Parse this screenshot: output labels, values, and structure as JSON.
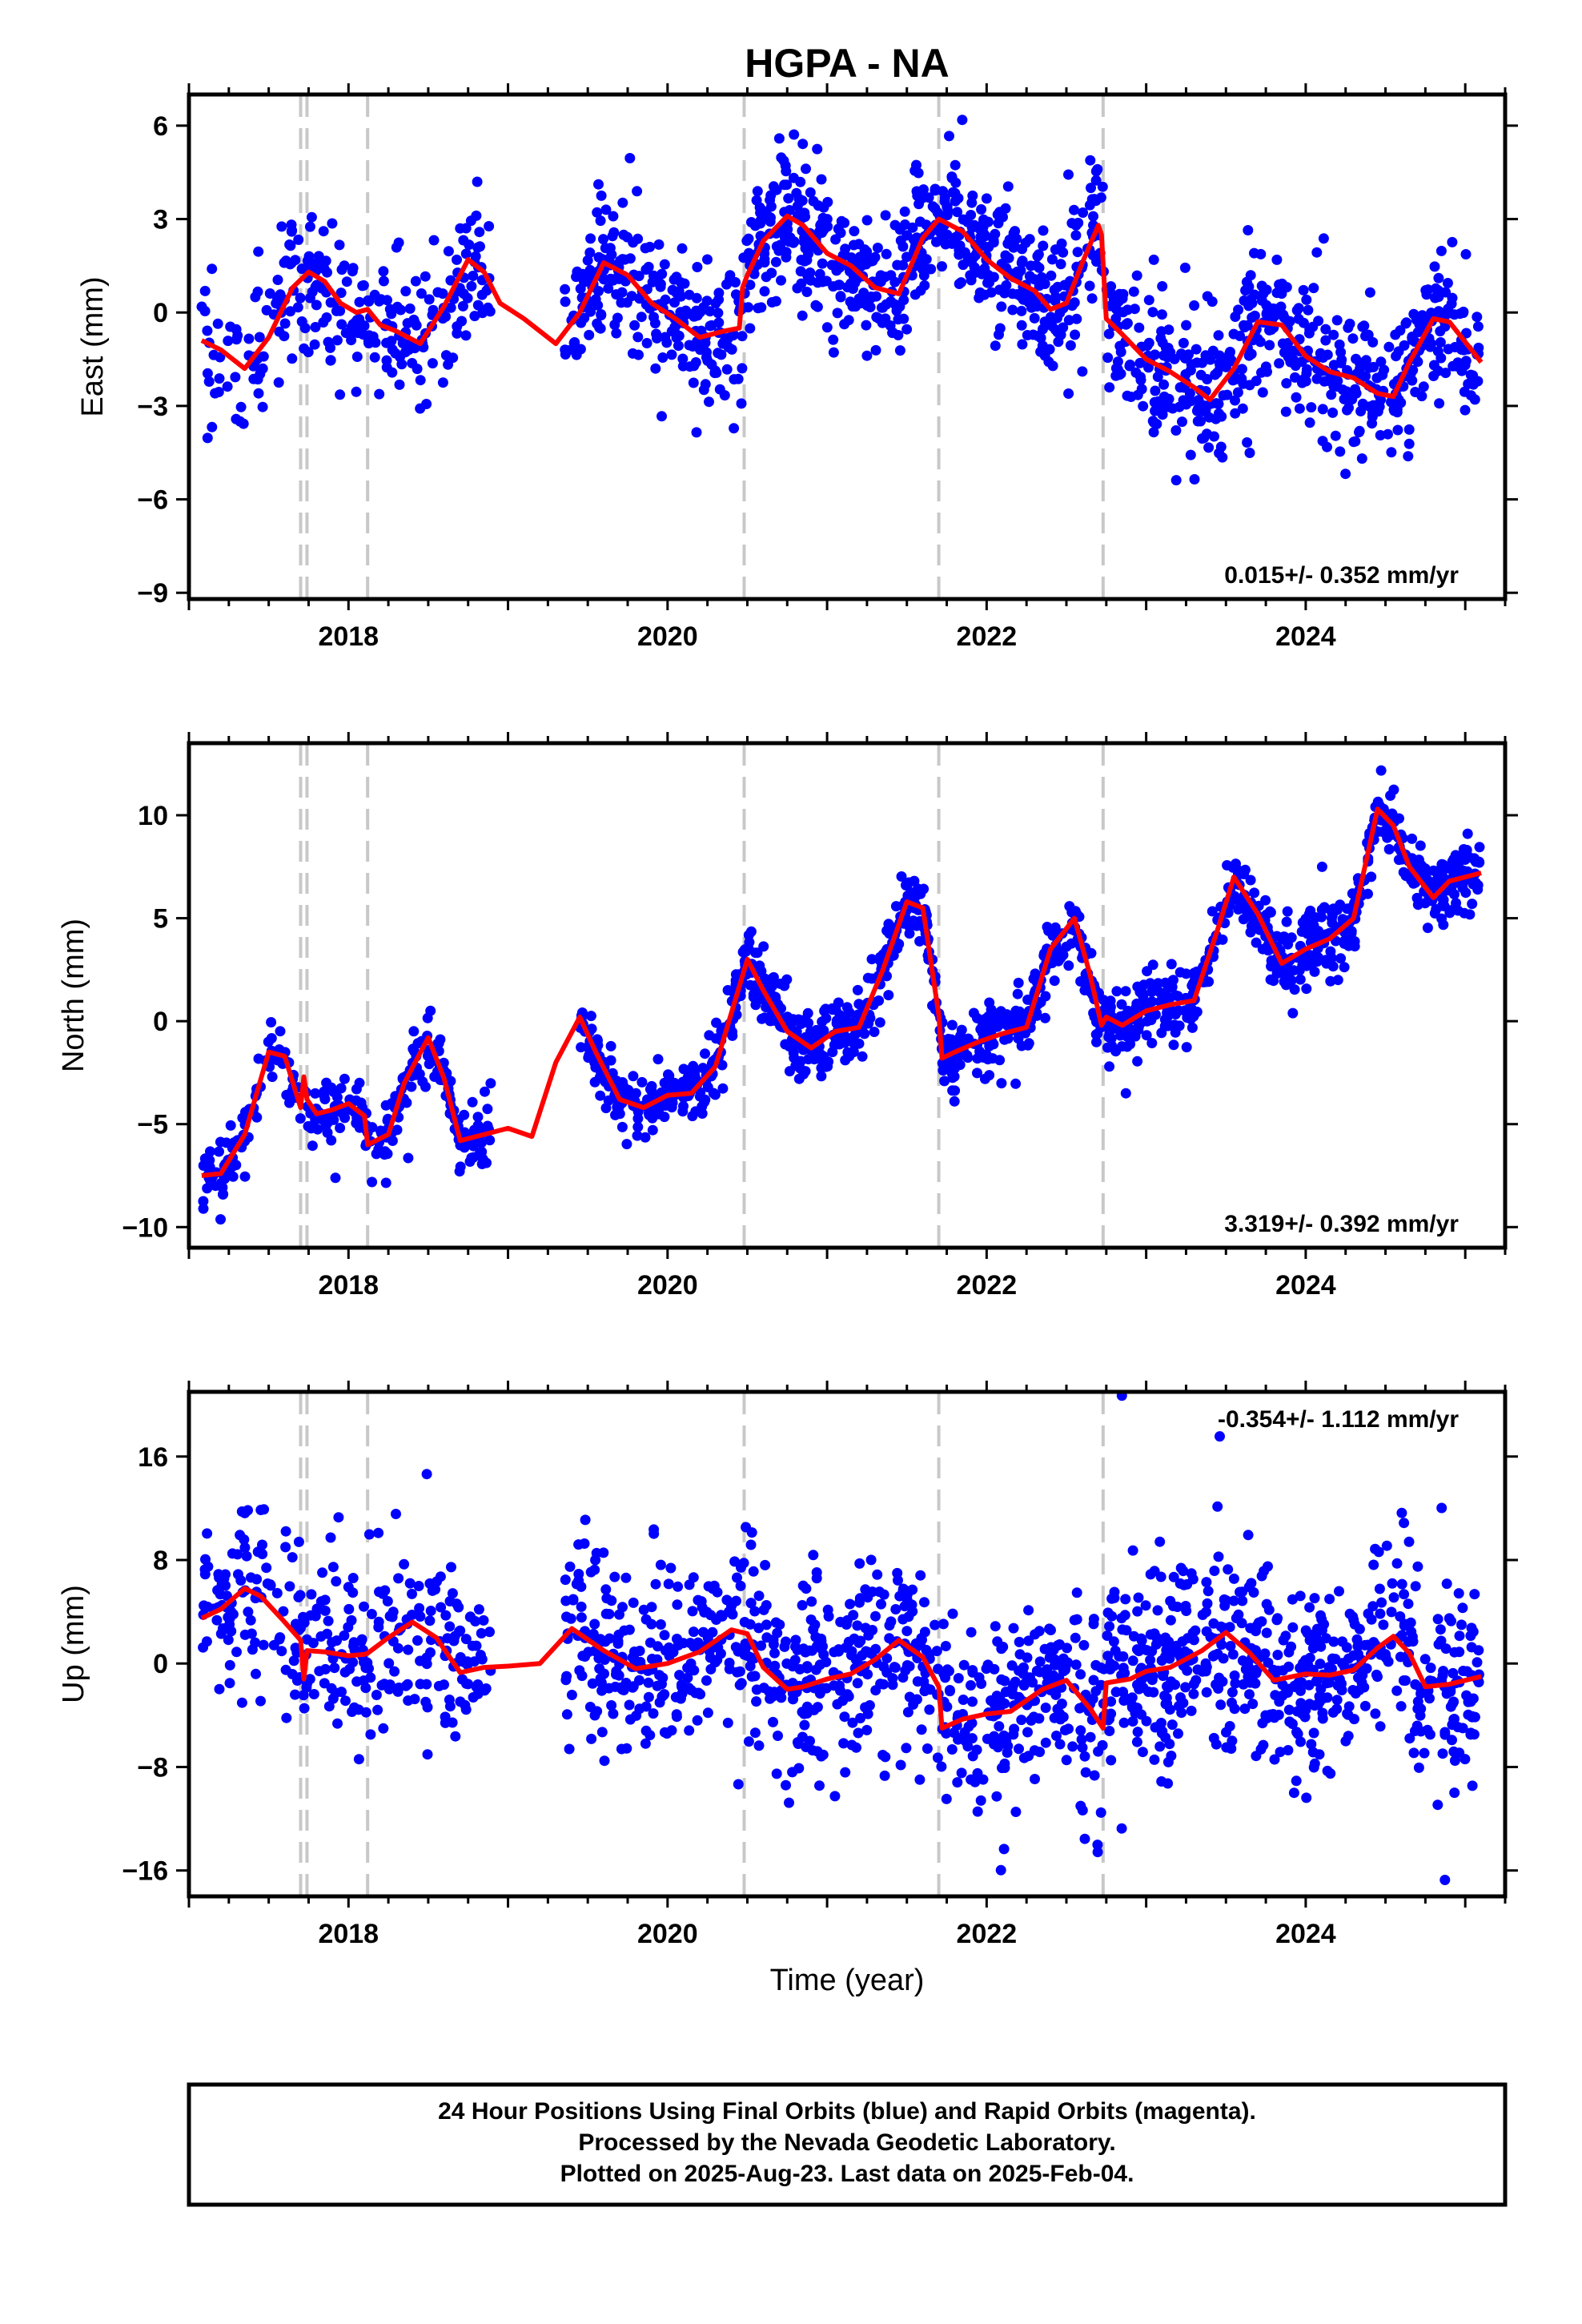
{
  "figure": {
    "title": "HGPA - NA",
    "xlabel": "Time (year)",
    "footer_lines": [
      "24 Hour Positions Using Final Orbits (blue) and Rapid Orbits (magenta).",
      "Processed by the Nevada Geodetic Laboratory.",
      "Plotted on 2025-Aug-23. Last data on 2025-Feb-04."
    ],
    "colors": {
      "points": "#0000ff",
      "model": "#ff0000",
      "breaks": "#c8c8c8",
      "frame": "#000000"
    }
  },
  "chart_data": [
    {
      "type": "scatter",
      "ylabel": "East (mm)",
      "rate": "0.015+/- 0.352 mm/yr",
      "rate_position": "bottom-right",
      "xlim": [
        2017.0,
        2025.25
      ],
      "ylim": [
        -9.2,
        7.0
      ],
      "xticks": [
        2018,
        2020,
        2022,
        2024
      ],
      "yticks": [
        6,
        3,
        0,
        -3,
        -6,
        -9
      ],
      "breaks": [
        2017.7,
        2017.74,
        2018.12,
        2020.48,
        2021.7,
        2022.73
      ],
      "model": {
        "x": [
          2017.08,
          2017.2,
          2017.35,
          2017.5,
          2017.65,
          2017.75,
          2017.85,
          2017.95,
          2018.05,
          2018.12,
          2018.2,
          2018.3,
          2018.45,
          2018.6,
          2018.75,
          2018.85,
          2018.95,
          2019.1,
          2019.3,
          2019.45,
          2019.6,
          2019.75,
          2019.9,
          2020.05,
          2020.2,
          2020.35,
          2020.45,
          2020.47,
          2020.5,
          2020.6,
          2020.75,
          2020.85,
          2021.0,
          2021.15,
          2021.3,
          2021.45,
          2021.6,
          2021.7,
          2021.85,
          2022.0,
          2022.15,
          2022.3,
          2022.4,
          2022.5,
          2022.6,
          2022.7,
          2022.72,
          2022.75,
          2022.85,
          2023.0,
          2023.15,
          2023.3,
          2023.4,
          2023.55,
          2023.7,
          2023.85,
          2024.0,
          2024.15,
          2024.3,
          2024.45,
          2024.55,
          2024.65,
          2024.8,
          2024.9,
          2025.1
        ],
        "y": [
          -0.9,
          -1.2,
          -1.8,
          -0.8,
          0.8,
          1.3,
          1.0,
          0.3,
          0.0,
          0.1,
          -0.4,
          -0.6,
          -1.0,
          0.2,
          1.7,
          1.3,
          0.3,
          -0.2,
          -1.0,
          0.0,
          1.6,
          1.2,
          0.3,
          -0.2,
          -0.8,
          -0.6,
          -0.5,
          0.8,
          1.2,
          2.3,
          3.1,
          2.8,
          1.9,
          1.5,
          0.8,
          0.6,
          2.4,
          3.0,
          2.6,
          1.7,
          1.1,
          0.7,
          0.1,
          0.3,
          1.6,
          2.8,
          2.5,
          -0.2,
          -0.7,
          -1.5,
          -1.9,
          -2.4,
          -2.8,
          -1.8,
          -0.3,
          -0.4,
          -1.4,
          -1.9,
          -2.1,
          -2.6,
          -2.7,
          -1.6,
          -0.2,
          -0.3,
          -1.6
        ]
      },
      "seasonal": {
        "amp": 1.2,
        "phase": 2017.7
      },
      "segments": [
        {
          "from": 2017.08,
          "to": 2018.9,
          "noise": 1.1,
          "n": 270
        },
        {
          "from": 2019.35,
          "to": 2020.55,
          "noise": 1.1,
          "n": 260
        },
        {
          "from": 2020.55,
          "to": 2025.09,
          "noise": 1.15,
          "n": 1050
        }
      ]
    },
    {
      "type": "scatter",
      "ylabel": "North (mm)",
      "rate": "3.319+/- 0.392 mm/yr",
      "rate_position": "bottom-right",
      "xlim": [
        2017.0,
        2025.25
      ],
      "ylim": [
        -11.0,
        13.5
      ],
      "xticks": [
        2018,
        2020,
        2022,
        2024
      ],
      "yticks": [
        10,
        5,
        0,
        -5,
        -10
      ],
      "breaks": [
        2017.7,
        2017.74,
        2018.12,
        2020.48,
        2021.7,
        2022.73
      ],
      "model": {
        "x": [
          2017.08,
          2017.2,
          2017.35,
          2017.5,
          2017.6,
          2017.7,
          2017.72,
          2017.74,
          2017.8,
          2017.9,
          2018.0,
          2018.1,
          2018.12,
          2018.25,
          2018.35,
          2018.5,
          2018.6,
          2018.7,
          2018.85,
          2019.0,
          2019.15,
          2019.3,
          2019.45,
          2019.55,
          2019.7,
          2019.85,
          2020.0,
          2020.15,
          2020.3,
          2020.5,
          2020.6,
          2020.75,
          2020.9,
          2021.05,
          2021.2,
          2021.35,
          2021.5,
          2021.6,
          2021.7,
          2021.72,
          2021.8,
          2021.95,
          2022.1,
          2022.25,
          2022.4,
          2022.55,
          2022.65,
          2022.72,
          2022.75,
          2022.85,
          2023.0,
          2023.15,
          2023.3,
          2023.45,
          2023.55,
          2023.7,
          2023.85,
          2024.0,
          2024.15,
          2024.3,
          2024.45,
          2024.55,
          2024.65,
          2024.8,
          2024.9,
          2025.1
        ],
        "y": [
          -7.5,
          -7.4,
          -5.5,
          -1.5,
          -1.7,
          -4.2,
          -2.7,
          -3.8,
          -4.5,
          -4.3,
          -4.0,
          -4.6,
          -6.0,
          -5.5,
          -3.0,
          -0.8,
          -2.8,
          -5.8,
          -5.5,
          -5.2,
          -5.6,
          -2.0,
          0.2,
          -1.5,
          -3.8,
          -4.2,
          -3.6,
          -3.5,
          -2.2,
          3.0,
          1.5,
          -0.5,
          -1.3,
          -0.5,
          -0.3,
          2.5,
          5.8,
          5.5,
          0.3,
          -1.8,
          -1.5,
          -1.0,
          -0.6,
          -0.3,
          3.5,
          5.0,
          2.2,
          -0.2,
          0.2,
          -0.2,
          0.5,
          0.8,
          1.0,
          4.5,
          7.0,
          5.2,
          2.8,
          3.5,
          4.0,
          5.0,
          10.3,
          9.5,
          7.5,
          6.0,
          6.8,
          7.2
        ]
      },
      "seasonal": {
        "amp": 2.2,
        "phase": 2017.55
      },
      "segments": [
        {
          "from": 2017.08,
          "to": 2018.9,
          "noise": 0.8,
          "n": 290
        },
        {
          "from": 2019.45,
          "to": 2020.55,
          "noise": 0.8,
          "n": 240
        },
        {
          "from": 2020.55,
          "to": 2025.09,
          "noise": 0.85,
          "n": 1050
        }
      ]
    },
    {
      "type": "scatter",
      "ylabel": "Up (mm)",
      "rate": "-0.354+/- 1.112 mm/yr",
      "rate_position": "top-right",
      "xlim": [
        2017.0,
        2025.25
      ],
      "ylim": [
        -18.0,
        21.0
      ],
      "xticks": [
        2018,
        2020,
        2022,
        2024
      ],
      "yticks": [
        16,
        8,
        0,
        -8,
        -16
      ],
      "breaks": [
        2017.7,
        2017.74,
        2018.12,
        2020.48,
        2021.7,
        2022.73
      ],
      "model": {
        "x": [
          2017.08,
          2017.2,
          2017.35,
          2017.45,
          2017.6,
          2017.7,
          2017.72,
          2017.74,
          2017.85,
          2018.0,
          2018.1,
          2018.12,
          2018.25,
          2018.4,
          2018.55,
          2018.7,
          2018.85,
          2019.0,
          2019.2,
          2019.4,
          2019.6,
          2019.8,
          2020.0,
          2020.2,
          2020.4,
          2020.5,
          2020.6,
          2020.75,
          2020.85,
          2021.0,
          2021.15,
          2021.3,
          2021.45,
          2021.6,
          2021.7,
          2021.72,
          2021.85,
          2022.0,
          2022.15,
          2022.35,
          2022.5,
          2022.65,
          2022.73,
          2022.75,
          2022.9,
          2023.0,
          2023.15,
          2023.35,
          2023.5,
          2023.65,
          2023.8,
          2024.0,
          2024.15,
          2024.3,
          2024.45,
          2024.55,
          2024.65,
          2024.75,
          2024.9,
          2025.1
        ],
        "y": [
          3.5,
          4.2,
          5.8,
          5.2,
          3.2,
          1.8,
          -1.2,
          1.0,
          0.9,
          0.6,
          0.7,
          0.8,
          2.0,
          3.2,
          2.0,
          -0.7,
          -0.3,
          -0.2,
          0.0,
          2.7,
          1.0,
          -0.4,
          0.0,
          0.9,
          2.6,
          2.3,
          -0.3,
          -2.0,
          -1.8,
          -1.2,
          -0.8,
          0.3,
          1.8,
          0.5,
          -1.8,
          -5.0,
          -4.3,
          -3.9,
          -3.7,
          -2.0,
          -1.3,
          -3.5,
          -5.0,
          -1.5,
          -1.2,
          -0.6,
          -0.3,
          1.0,
          2.4,
          0.8,
          -1.3,
          -0.8,
          -0.9,
          -0.5,
          1.2,
          2.1,
          0.8,
          -1.8,
          -1.6,
          -1.0
        ]
      },
      "seasonal": {
        "amp": 1.5,
        "phase": 2017.3
      },
      "segments": [
        {
          "from": 2017.08,
          "to": 2018.9,
          "noise": 3.6,
          "n": 300
        },
        {
          "from": 2019.35,
          "to": 2020.55,
          "noise": 3.6,
          "n": 260
        },
        {
          "from": 2020.55,
          "to": 2025.09,
          "noise": 3.8,
          "n": 1050
        }
      ]
    }
  ]
}
